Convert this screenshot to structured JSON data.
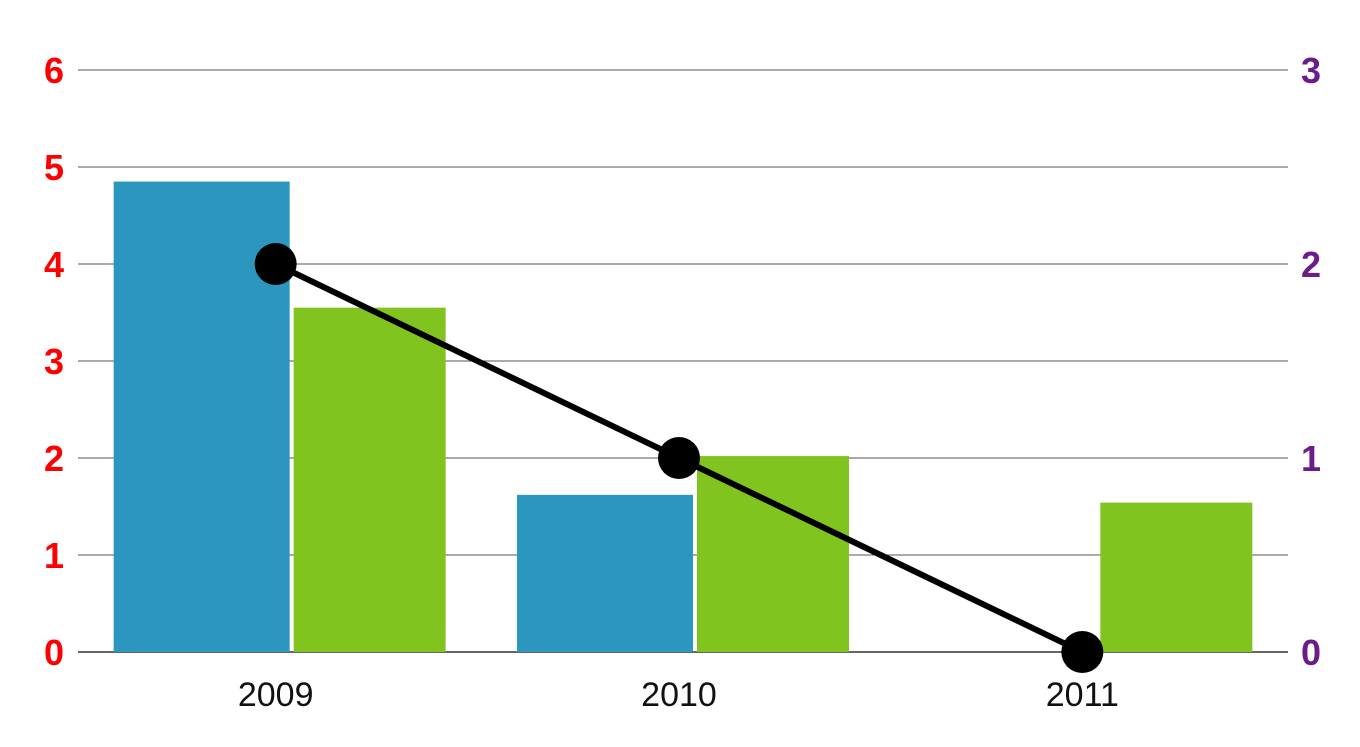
{
  "chart_data": {
    "type": "bar",
    "categories": [
      "2009",
      "2010",
      "2011"
    ],
    "series": [
      {
        "type": "bar",
        "axis": "left",
        "color": "#2b96be",
        "values": [
          4.85,
          1.62,
          null
        ]
      },
      {
        "type": "bar",
        "axis": "left",
        "color": "#82c41f",
        "values": [
          3.55,
          2.02,
          1.54
        ]
      },
      {
        "type": "line",
        "axis": "right",
        "color": "#000000",
        "values": [
          2,
          1,
          0
        ]
      }
    ],
    "y_left": {
      "range": [
        0,
        6
      ],
      "ticks": [
        "0",
        "1",
        "2",
        "3",
        "4",
        "5",
        "6"
      ],
      "color": "#ff0000"
    },
    "y_right": {
      "range": [
        0,
        3
      ],
      "ticks": [
        "0",
        "1",
        "2",
        "3"
      ],
      "color": "#6b1c8a"
    },
    "grid": true,
    "title": "",
    "xlabel": "",
    "ylabel": ""
  }
}
